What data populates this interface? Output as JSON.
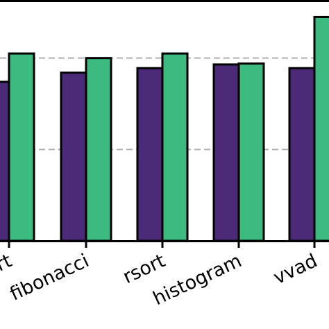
{
  "chart_data": {
    "type": "bar",
    "title": "",
    "xlabel": "",
    "ylabel": "",
    "categories": [
      "qsort",
      "fibonacci",
      "rsort",
      "histogram",
      "vvadd"
    ],
    "visible_tick_text": [
      "sort",
      "fibonacci",
      "rsort",
      "histogram",
      "vvad"
    ],
    "series": [
      {
        "values": [
          1.74,
          1.84,
          1.89,
          1.93,
          1.89
        ]
      },
      {
        "values": [
          2.05,
          2.0,
          2.05,
          1.94,
          2.45
        ]
      }
    ],
    "ylim": [
      0,
      3.0
    ],
    "gridlines_y": [
      1.0,
      2.0,
      3.0
    ],
    "grid": "horizontal-dashed",
    "colors": {
      "series": [
        "#4b2a78",
        "#3dba7f"
      ],
      "edge": "#000000",
      "grid": "#b0b0b0"
    }
  }
}
